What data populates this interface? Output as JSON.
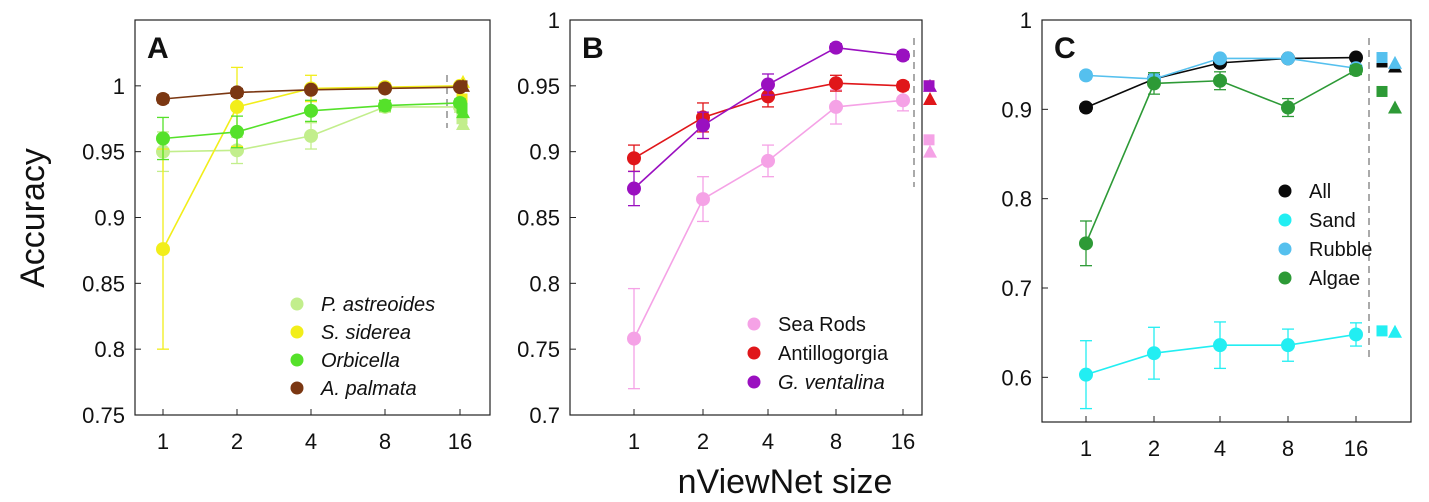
{
  "ylabel": "Accuracy",
  "xlabel": "nViewNet size",
  "chart_data": [
    {
      "type": "line",
      "panel": "A",
      "categories": [
        "1",
        "2",
        "4",
        "8",
        "16"
      ],
      "ylim": [
        0.75,
        1.05
      ],
      "yticks": [
        "1",
        "0.95",
        "0.9",
        "0.85",
        "0.8",
        "0.75"
      ],
      "legend_position": "bottom-right",
      "series": [
        {
          "name": "P. astreoides",
          "color": "#c2ee8c",
          "values": [
            0.95,
            0.951,
            0.962,
            0.984,
            0.984
          ],
          "err": [
            0.015,
            0.01,
            0.01,
            0.004,
            0.004
          ],
          "square": 0.975,
          "triangle": 0.971
        },
        {
          "name": "S. siderea",
          "color": "#f2ee1a",
          "values": [
            0.876,
            0.984,
            0.998,
            0.999,
            1.0
          ],
          "err": [
            0.076,
            0.03,
            0.01,
            0.003,
            0.002
          ],
          "square": 0.99,
          "triangle": 1.003
        },
        {
          "name": "Orbicella",
          "color": "#55e12a",
          "values": [
            0.96,
            0.965,
            0.981,
            0.985,
            0.987
          ],
          "err": [
            0.016,
            0.012,
            0.008,
            0.004,
            0.003
          ],
          "square": 0.983,
          "triangle": 0.98
        },
        {
          "name": "A. palmata",
          "color": "#7b3712",
          "values": [
            0.99,
            0.995,
            0.997,
            0.998,
            0.999
          ],
          "err": [
            0.003,
            0.003,
            0.002,
            0.002,
            0.001
          ],
          "square": 1.0,
          "triangle": 1.0
        }
      ]
    },
    {
      "type": "line",
      "panel": "B",
      "categories": [
        "1",
        "2",
        "4",
        "8",
        "16"
      ],
      "ylim": [
        0.7,
        1.0
      ],
      "yticks": [
        "1",
        "0.95",
        "0.9",
        "0.85",
        "0.8",
        "0.75",
        "0.7"
      ],
      "legend_position": "bottom-right",
      "series": [
        {
          "name": "Sea Rods",
          "color": "#f5a2e6",
          "values": [
            0.758,
            0.864,
            0.893,
            0.934,
            0.939
          ],
          "err": [
            0.038,
            0.017,
            0.012,
            0.013,
            0.008
          ],
          "square": 0.909,
          "triangle": 0.9
        },
        {
          "name": "Antillogorgia",
          "color": "#e0161a",
          "values": [
            0.895,
            0.926,
            0.942,
            0.952,
            0.95
          ],
          "err": [
            0.01,
            0.011,
            0.008,
            0.006,
            0.003
          ],
          "square": 0.95,
          "triangle": 0.94
        },
        {
          "name": "G. ventalina",
          "color": "#9a10c0",
          "values": [
            0.872,
            0.92,
            0.951,
            0.979,
            0.973
          ],
          "err": [
            0.013,
            0.01,
            0.008,
            0.003,
            0.003
          ],
          "square": 0.95,
          "triangle": 0.95
        }
      ]
    },
    {
      "type": "line",
      "panel": "C",
      "categories": [
        "1",
        "2",
        "4",
        "8",
        "16"
      ],
      "ylim": [
        0.55,
        1.0
      ],
      "yticks": [
        "1",
        "0.9",
        "0.8",
        "0.7",
        "0.6"
      ],
      "legend_position": "center-right",
      "series": [
        {
          "name": "All",
          "color": "#0a0a0a",
          "values": [
            0.902,
            0.934,
            0.952,
            0.957,
            0.958
          ],
          "err": [
            0.004,
            0.005,
            0.004,
            0.003,
            0.003
          ],
          "square": 0.953,
          "triangle": 0.948
        },
        {
          "name": "Sand",
          "color": "#22eef2",
          "values": [
            0.603,
            0.627,
            0.636,
            0.636,
            0.648
          ],
          "err": [
            0.038,
            0.029,
            0.026,
            0.018,
            0.013
          ],
          "square": 0.652,
          "triangle": 0.651
        },
        {
          "name": "Rubble",
          "color": "#55c0ee",
          "values": [
            0.938,
            0.934,
            0.957,
            0.957,
            0.946
          ],
          "err": [
            0.004,
            0.004,
            0.003,
            0.003,
            0.003
          ],
          "square": 0.958,
          "triangle": 0.952
        },
        {
          "name": "Algae",
          "color": "#2d9a36",
          "values": [
            0.75,
            0.929,
            0.932,
            0.902,
            0.944
          ],
          "err": [
            0.025,
            0.012,
            0.01,
            0.01,
            0.005
          ],
          "square": 0.92,
          "triangle": 0.902
        }
      ]
    }
  ]
}
